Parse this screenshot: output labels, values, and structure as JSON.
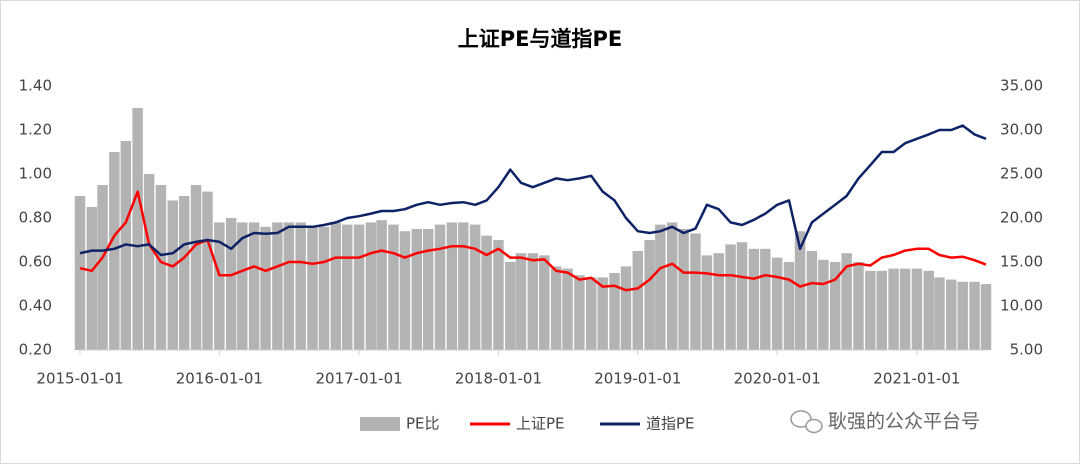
{
  "chart_data": {
    "type": "bar-line",
    "title": "上证PE与道指PE",
    "watermark": "耿强的公众平台号",
    "x": [
      "2015-01-01",
      "2015-02-01",
      "2015-03-01",
      "2015-04-01",
      "2015-05-01",
      "2015-06-01",
      "2015-07-01",
      "2015-08-01",
      "2015-09-01",
      "2015-10-01",
      "2015-11-01",
      "2015-12-01",
      "2016-01-01",
      "2016-02-01",
      "2016-03-01",
      "2016-04-01",
      "2016-05-01",
      "2016-06-01",
      "2016-07-01",
      "2016-08-01",
      "2016-09-01",
      "2016-10-01",
      "2016-11-01",
      "2016-12-01",
      "2017-01-01",
      "2017-02-01",
      "2017-03-01",
      "2017-04-01",
      "2017-05-01",
      "2017-06-01",
      "2017-07-01",
      "2017-08-01",
      "2017-09-01",
      "2017-10-01",
      "2017-11-01",
      "2017-12-01",
      "2018-01-01",
      "2018-02-01",
      "2018-03-01",
      "2018-04-01",
      "2018-05-01",
      "2018-06-01",
      "2018-07-01",
      "2018-08-01",
      "2018-09-01",
      "2018-10-01",
      "2018-11-01",
      "2018-12-01",
      "2019-01-01",
      "2019-02-01",
      "2019-03-01",
      "2019-04-01",
      "2019-05-01",
      "2019-06-01",
      "2019-07-01",
      "2019-08-01",
      "2019-09-01",
      "2019-10-01",
      "2019-11-01",
      "2019-12-01",
      "2020-01-01",
      "2020-02-01",
      "2020-03-01",
      "2020-04-01",
      "2020-05-01",
      "2020-06-01",
      "2020-07-01",
      "2020-08-01",
      "2020-09-01",
      "2020-10-01",
      "2020-11-01",
      "2020-12-01",
      "2021-01-01",
      "2021-02-01",
      "2021-03-01",
      "2021-04-01",
      "2021-05-01",
      "2021-06-01",
      "2021-07-01"
    ],
    "series": [
      {
        "name": "PE比",
        "type": "bar",
        "color": "#b3b3b3",
        "axis": "y",
        "values": [
          0.9,
          0.85,
          0.95,
          1.1,
          1.15,
          1.3,
          1.0,
          0.95,
          0.88,
          0.9,
          0.95,
          0.92,
          0.78,
          0.8,
          0.78,
          0.78,
          0.76,
          0.78,
          0.78,
          0.78,
          0.76,
          0.76,
          0.78,
          0.77,
          0.77,
          0.78,
          0.79,
          0.77,
          0.74,
          0.75,
          0.75,
          0.77,
          0.78,
          0.78,
          0.77,
          0.72,
          0.7,
          0.6,
          0.64,
          0.64,
          0.63,
          0.58,
          0.57,
          0.54,
          0.53,
          0.53,
          0.55,
          0.58,
          0.65,
          0.7,
          0.77,
          0.78,
          0.75,
          0.73,
          0.63,
          0.64,
          0.68,
          0.69,
          0.66,
          0.66,
          0.62,
          0.6,
          0.74,
          0.65,
          0.61,
          0.6,
          0.64,
          0.6,
          0.56,
          0.56,
          0.57,
          0.57,
          0.57,
          0.56,
          0.53,
          0.52,
          0.51,
          0.51,
          0.5
        ]
      },
      {
        "name": "上证PE",
        "type": "line",
        "color": "#ff0000",
        "axis": "y2",
        "values": [
          14.3,
          14,
          15.5,
          18,
          19.5,
          23,
          17,
          15,
          14.5,
          15.5,
          17,
          17.5,
          13.5,
          13.5,
          14,
          14.5,
          14,
          14.5,
          15,
          15,
          14.8,
          15,
          15.5,
          15.5,
          15.5,
          16,
          16.3,
          16,
          15.5,
          16,
          16.3,
          16.5,
          16.8,
          16.8,
          16.5,
          15.8,
          16.5,
          15.5,
          15.5,
          15.2,
          15.3,
          14,
          13.8,
          13,
          13.2,
          12.2,
          12.3,
          11.8,
          12,
          13,
          14.3,
          14.8,
          13.8,
          13.8,
          13.7,
          13.5,
          13.5,
          13.3,
          13.1,
          13.5,
          13.3,
          13,
          12.2,
          12.6,
          12.5,
          13,
          14.5,
          14.8,
          14.6,
          15.5,
          15.8,
          16.3,
          16.5,
          16.5,
          15.8,
          15.5,
          15.6,
          15.2,
          14.7
        ]
      },
      {
        "name": "道指PE",
        "type": "line",
        "color": "#0d2366",
        "axis": "y2",
        "values": [
          16,
          16.3,
          16.3,
          16.5,
          17,
          16.8,
          17,
          15.8,
          16,
          17,
          17.3,
          17.5,
          17.3,
          16.5,
          17.7,
          18.3,
          18.2,
          18.3,
          19,
          19,
          19,
          19.2,
          19.5,
          20,
          20.2,
          20.5,
          20.8,
          20.8,
          21,
          21.5,
          21.8,
          21.5,
          21.7,
          21.8,
          21.5,
          22,
          23.5,
          25.5,
          24,
          23.5,
          24,
          24.5,
          24.3,
          24.5,
          24.8,
          23,
          22,
          20,
          18.5,
          18.3,
          18.5,
          19,
          18.3,
          18.8,
          21.5,
          21,
          19.5,
          19.2,
          19.8,
          20.5,
          21.5,
          22,
          16.5,
          19.5,
          20.5,
          21.5,
          22.5,
          24.5,
          26,
          27.5,
          27.5,
          28.5,
          29,
          29.5,
          30,
          30,
          30.5,
          29.5,
          29
        ]
      }
    ],
    "xlim": [
      "2015-01-01",
      "2021-07-01"
    ],
    "xticks": [
      "2015-01-01",
      "2016-01-01",
      "2017-01-01",
      "2018-01-01",
      "2019-01-01",
      "2020-01-01",
      "2021-01-01"
    ],
    "ylim": [
      0.2,
      1.4
    ],
    "yticks": [
      {
        "value": 0.2,
        "label": "0.20"
      },
      {
        "value": 0.4,
        "label": "0.40"
      },
      {
        "value": 0.6,
        "label": "0.60"
      },
      {
        "value": 0.8,
        "label": "0.80"
      },
      {
        "value": 1.0,
        "label": "1.00"
      },
      {
        "value": 1.2,
        "label": "1.20"
      },
      {
        "value": 1.4,
        "label": "1.40"
      }
    ],
    "y2lim": [
      5,
      35
    ],
    "y2ticks": [
      {
        "value": 5,
        "label": "5.00"
      },
      {
        "value": 10,
        "label": "10.00"
      },
      {
        "value": 15,
        "label": "15.00"
      },
      {
        "value": 20,
        "label": "20.00"
      },
      {
        "value": 25,
        "label": "25.00"
      },
      {
        "value": 30,
        "label": "30.00"
      },
      {
        "value": 35,
        "label": "35.00"
      }
    ],
    "grid": false,
    "legend": "bottom"
  }
}
